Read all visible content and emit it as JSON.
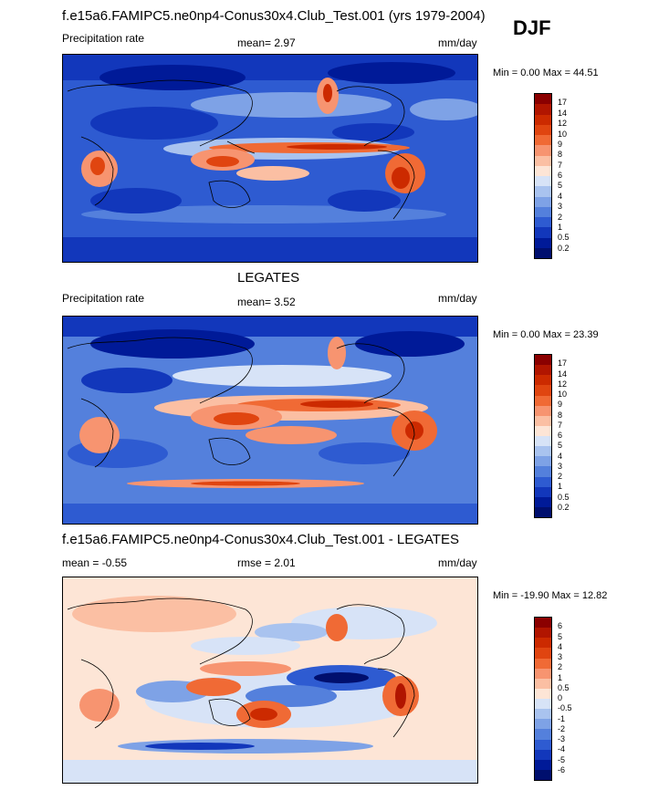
{
  "season": "DJF",
  "panels": [
    {
      "title": "f.e15a6.FAMIPC5.ne0np4-Conus30x4.Club_Test.001 (yrs 1979-2004)",
      "left_label": "Precipitation rate",
      "center_label": "mean=  2.97",
      "units": "mm/day",
      "minmax": "Min =   0.00 Max =  44.51",
      "colorbar_labels": [
        "17",
        "14",
        "12",
        "10",
        "9",
        "8",
        "7",
        "6",
        "5",
        "4",
        "3",
        "2",
        "1",
        "0.5",
        "0.2"
      ],
      "colors": [
        "#8b0000",
        "#b11500",
        "#cc2a00",
        "#e04510",
        "#f06a35",
        "#f79470",
        "#fbbfa3",
        "#fde5d6",
        "#d7e3f7",
        "#a9c3ef",
        "#7ea2e6",
        "#5480dc",
        "#2e5bd1",
        "#1237bb",
        "#001a98",
        "#000f6e"
      ]
    },
    {
      "title": "LEGATES",
      "left_label": "Precipitation rate",
      "center_label": "mean=  3.52",
      "units": "mm/day",
      "minmax": "Min =   0.00 Max =  23.39",
      "colorbar_labels": [
        "17",
        "14",
        "12",
        "10",
        "9",
        "8",
        "7",
        "6",
        "5",
        "4",
        "3",
        "2",
        "1",
        "0.5",
        "0.2"
      ],
      "colors": [
        "#8b0000",
        "#b11500",
        "#cc2a00",
        "#e04510",
        "#f06a35",
        "#f79470",
        "#fbbfa3",
        "#fde5d6",
        "#d7e3f7",
        "#a9c3ef",
        "#7ea2e6",
        "#5480dc",
        "#2e5bd1",
        "#1237bb",
        "#001a98",
        "#000f6e"
      ]
    },
    {
      "title": "f.e15a6.FAMIPC5.ne0np4-Conus30x4.Club_Test.001 - LEGATES",
      "left_label": "mean =  -0.55",
      "center_label": "rmse =   2.01",
      "units": "mm/day",
      "minmax": "Min = -19.90 Max =  12.82",
      "colorbar_labels": [
        "6",
        "5",
        "4",
        "3",
        "2",
        "1",
        "0.5",
        "0",
        "-0.5",
        "-1",
        "-2",
        "-3",
        "-4",
        "-5",
        "-6"
      ],
      "colors": [
        "#8b0000",
        "#b11500",
        "#cc2a00",
        "#e04510",
        "#f06a35",
        "#f79470",
        "#fbbfa3",
        "#fde5d6",
        "#d7e3f7",
        "#a9c3ef",
        "#7ea2e6",
        "#5480dc",
        "#2e5bd1",
        "#1237bb",
        "#001a98",
        "#000f6e"
      ]
    }
  ]
}
